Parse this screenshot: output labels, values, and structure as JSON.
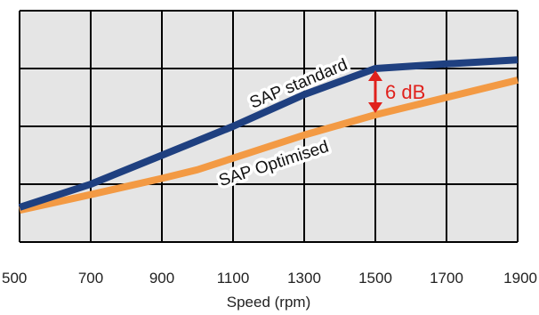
{
  "chart_data": {
    "type": "line",
    "xlabel": "Speed (rpm)",
    "ylabel": "",
    "xlim": [
      500,
      1900
    ],
    "ylim": [
      0,
      4
    ],
    "x_ticks": [
      500,
      700,
      900,
      1100,
      1300,
      1500,
      1700,
      1900
    ],
    "x_tick_labels": [
      "500",
      "700",
      "900",
      "1100",
      "1300",
      "1500",
      "1700",
      "1900"
    ],
    "y_ticks": [
      0,
      1,
      2,
      3,
      4
    ],
    "grid": true,
    "series": [
      {
        "name": "SAP standard",
        "color": "#1f4080",
        "x": [
          500,
          700,
          900,
          1100,
          1300,
          1500,
          1700,
          1900
        ],
        "y": [
          0.6,
          1.0,
          1.5,
          2.0,
          2.55,
          3.0,
          3.08,
          3.15
        ]
      },
      {
        "name": "SAP Optimised",
        "color": "#f39a44",
        "x": [
          500,
          700,
          900,
          1000,
          1100,
          1300,
          1500,
          1700,
          1900
        ],
        "y": [
          0.55,
          0.82,
          1.1,
          1.25,
          1.45,
          1.85,
          2.2,
          2.5,
          2.8
        ]
      }
    ],
    "annotations": [
      {
        "text": "6 dB",
        "color": "#e0211c",
        "x": 1500,
        "y_from": 3.0,
        "y_to": 2.2
      }
    ]
  }
}
